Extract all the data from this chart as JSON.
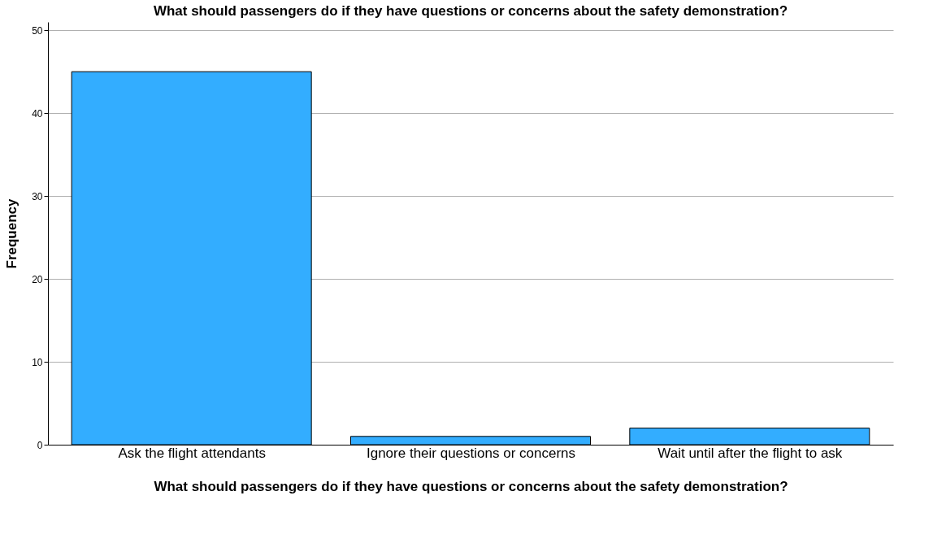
{
  "chart_data": {
    "type": "bar",
    "title": "What should passengers do if they have questions or concerns about the safety demonstration?",
    "xlabel": "What should passengers do if they have questions or concerns about the safety demonstration?",
    "ylabel": "Frequency",
    "categories": [
      "Ask the flight attendants",
      "Ignore their questions or concerns",
      "Wait until after the flight to ask"
    ],
    "values": [
      45,
      1,
      2
    ],
    "color": "#33adff",
    "ylim": [
      0,
      51
    ],
    "yticks": [
      0,
      10,
      20,
      30,
      40,
      50
    ],
    "grid": "y"
  }
}
